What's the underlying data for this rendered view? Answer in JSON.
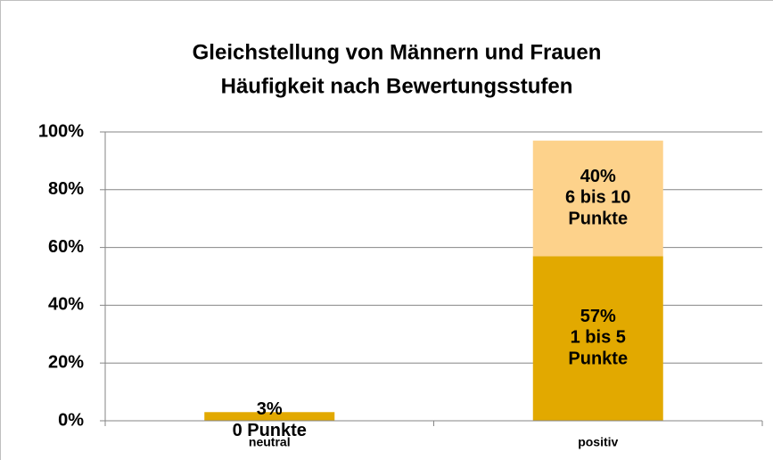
{
  "chart_data": {
    "type": "stacked_bar",
    "title": "Gleichstellung von Männern und Frauen",
    "subtitle": "Häufigkeit nach Bewertungsstufen",
    "categories": [
      "neutral",
      "positiv"
    ],
    "series": [
      {
        "name": "0 Punkte",
        "color": "#e2a900",
        "values": [
          3,
          null
        ],
        "value_labels": [
          "3%",
          null
        ]
      },
      {
        "name": "1 bis 5 Punkte",
        "color": "#e2a900",
        "values": [
          null,
          57
        ],
        "value_labels": [
          null,
          "57%"
        ]
      },
      {
        "name": "6 bis 10 Punkte",
        "color": "#fdd28b",
        "values": [
          null,
          40
        ],
        "value_labels": [
          null,
          "40%"
        ]
      }
    ],
    "ylim": [
      0,
      100
    ],
    "yticks": [
      {
        "value": 0,
        "label": "0%"
      },
      {
        "value": 20,
        "label": "20%"
      },
      {
        "value": 40,
        "label": "40%"
      },
      {
        "value": 60,
        "label": "60%"
      },
      {
        "value": 80,
        "label": "80%"
      },
      {
        "value": 100,
        "label": "100%"
      }
    ],
    "grid": true
  }
}
